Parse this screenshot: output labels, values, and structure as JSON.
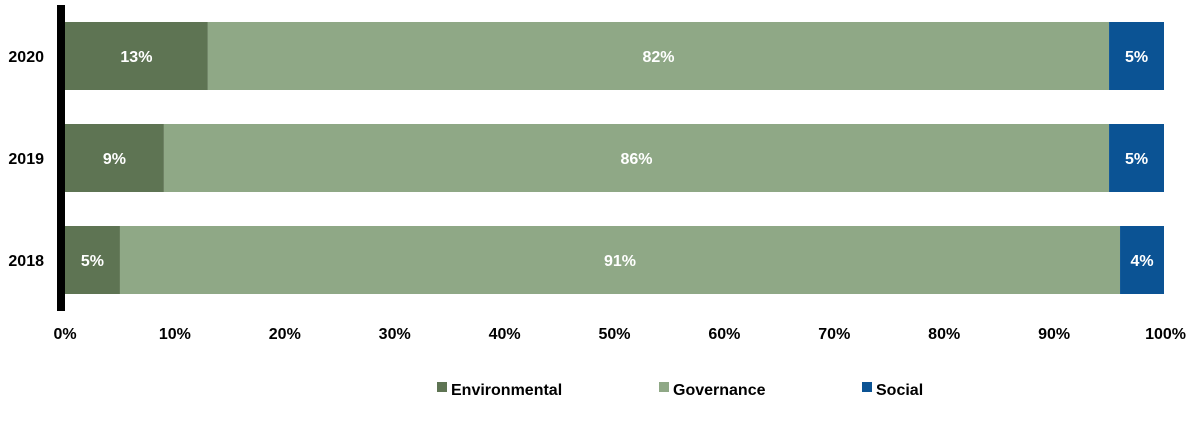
{
  "chart_data": {
    "type": "bar",
    "orientation": "horizontal",
    "stacked": true,
    "categories": [
      "2020",
      "2019",
      "2018"
    ],
    "series": [
      {
        "name": "Environmental",
        "values": [
          13,
          9,
          5
        ],
        "labels": [
          "13%",
          "9%",
          "5%"
        ],
        "color": "#5e7453"
      },
      {
        "name": "Governance",
        "values": [
          82,
          86,
          91
        ],
        "labels": [
          "82%",
          "86%",
          "91%"
        ],
        "color": "#8fa886"
      },
      {
        "name": "Social",
        "values": [
          5,
          5,
          4
        ],
        "labels": [
          "5%",
          "5%",
          "4%"
        ],
        "color": "#0b5394"
      }
    ],
    "xlim": [
      0,
      100
    ],
    "xticks": [
      "0%",
      "10%",
      "20%",
      "30%",
      "40%",
      "50%",
      "60%",
      "70%",
      "80%",
      "90%",
      "100%"
    ],
    "grid": false,
    "legend_position": "bottom"
  }
}
